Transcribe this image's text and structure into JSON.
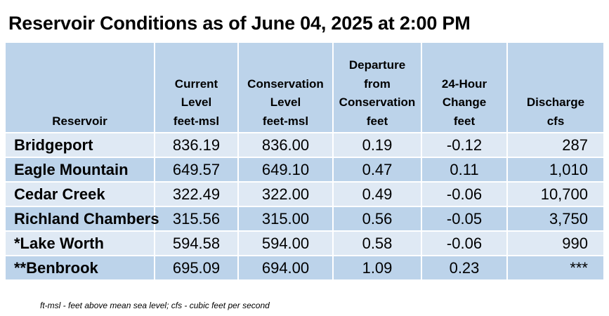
{
  "title": "Reservoir Conditions as of June 04, 2025 at 2:00 PM",
  "columns": {
    "reservoir": [
      "Reservoir"
    ],
    "current": [
      "Current",
      "Level",
      "feet-msl"
    ],
    "conservation": [
      "Conservation",
      "Level",
      "feet-msl"
    ],
    "departure": [
      "Departure",
      "from",
      "Conservation",
      "feet"
    ],
    "change": [
      "24-Hour",
      "Change",
      "feet"
    ],
    "discharge": [
      "Discharge",
      "cfs"
    ]
  },
  "rows": [
    {
      "name": "Bridgeport",
      "current": "836.19",
      "conservation": "836.00",
      "departure": "0.19",
      "change": "-0.12",
      "discharge": "287"
    },
    {
      "name": "Eagle Mountain",
      "current": "649.57",
      "conservation": "649.10",
      "departure": "0.47",
      "change": "0.11",
      "discharge": "1,010"
    },
    {
      "name": "Cedar Creek",
      "current": "322.49",
      "conservation": "322.00",
      "departure": "0.49",
      "change": "-0.06",
      "discharge": "10,700"
    },
    {
      "name": "Richland Chambers",
      "current": "315.56",
      "conservation": "315.00",
      "departure": "0.56",
      "change": "-0.05",
      "discharge": "3,750"
    },
    {
      "name": "*Lake Worth",
      "current": "594.58",
      "conservation": "594.00",
      "departure": "0.58",
      "change": "-0.06",
      "discharge": "990"
    },
    {
      "name": "**Benbrook",
      "current": "695.09",
      "conservation": "694.00",
      "departure": "1.09",
      "change": "0.23",
      "discharge": "***"
    }
  ],
  "footnote": "ft-msl - feet above mean sea level; cfs - cubic feet per second"
}
